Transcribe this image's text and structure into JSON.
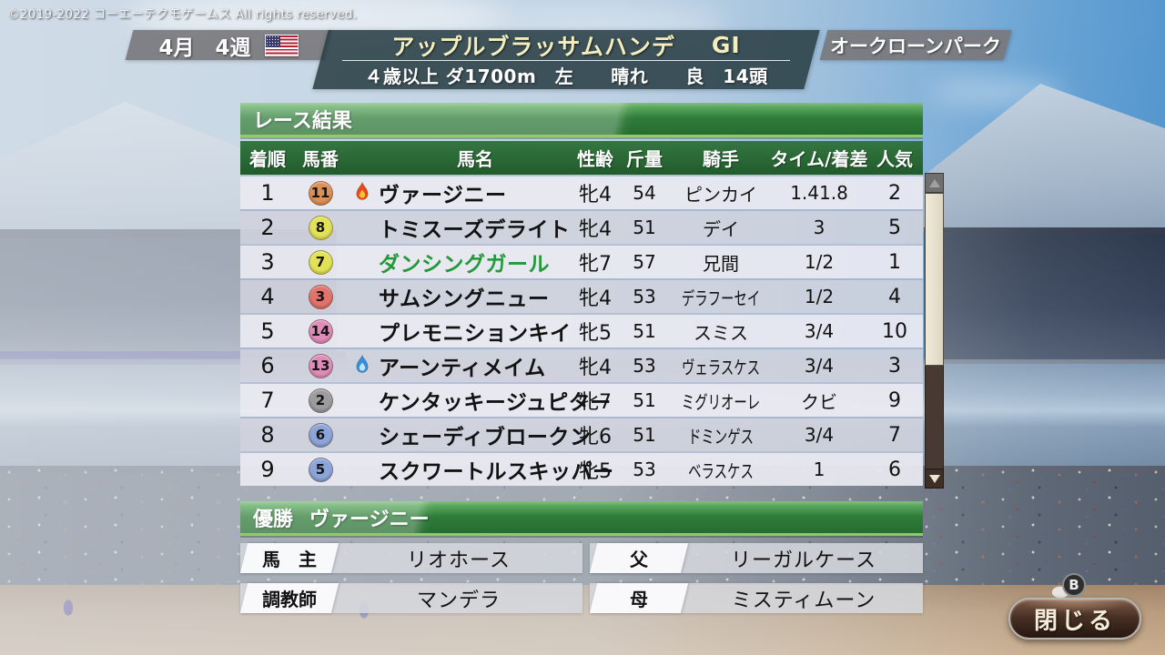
{
  "copyright": "©2019-2022 コーエーテクモゲームス All rights reserved.",
  "header": {
    "date": "4月　4週",
    "flag": "us-flag",
    "race_name": "アップルブラッサムハンデ",
    "grade": "GI",
    "conditions": "４歳以上 ダ1700m　左　　晴れ　　良　14頭",
    "venue": "オークローンパーク"
  },
  "results": {
    "section_title": "レース結果",
    "columns": {
      "rank": "着順",
      "number": "馬番",
      "name": "馬名",
      "sex_age": "性齢",
      "weight": "斤量",
      "jockey": "騎手",
      "time_margin": "タイム/着差",
      "popularity": "人気"
    },
    "rows": [
      {
        "rank": "1",
        "num": "11",
        "num_color": "#dd8f55",
        "condition": "hot",
        "name": "ヴァージニー",
        "name_color": "#121212",
        "sex_age": "牝4",
        "weight": "54",
        "jockey": "ピンカイ",
        "jockey_condensed": false,
        "time_margin": "1.41.8",
        "popularity": "2"
      },
      {
        "rank": "2",
        "num": "8",
        "num_color": "#e2e257",
        "condition": "",
        "name": "トミスーズデライト",
        "name_color": "#121212",
        "sex_age": "牝4",
        "weight": "51",
        "jockey": "デイ",
        "jockey_condensed": false,
        "time_margin": "3",
        "popularity": "5"
      },
      {
        "rank": "3",
        "num": "7",
        "num_color": "#e2e257",
        "condition": "",
        "name": "ダンシングガール",
        "name_color": "#23993a",
        "sex_age": "牝7",
        "weight": "57",
        "jockey": "兄間",
        "jockey_condensed": false,
        "time_margin": "1/2",
        "popularity": "1"
      },
      {
        "rank": "4",
        "num": "3",
        "num_color": "#e1726c",
        "condition": "",
        "name": "サムシングニュー",
        "name_color": "#121212",
        "sex_age": "牝4",
        "weight": "53",
        "jockey": "デラフーセイ",
        "jockey_condensed": true,
        "time_margin": "1/2",
        "popularity": "4"
      },
      {
        "rank": "5",
        "num": "14",
        "num_color": "#df8cba",
        "condition": "",
        "name": "プレモニションキイ",
        "name_color": "#121212",
        "sex_age": "牝5",
        "weight": "51",
        "jockey": "スミス",
        "jockey_condensed": false,
        "time_margin": "3/4",
        "popularity": "10"
      },
      {
        "rank": "6",
        "num": "13",
        "num_color": "#df8cba",
        "condition": "cool",
        "name": "アーンティメイム",
        "name_color": "#121212",
        "sex_age": "牝4",
        "weight": "53",
        "jockey": "ヴェラスケス",
        "jockey_condensed": true,
        "time_margin": "3/4",
        "popularity": "3"
      },
      {
        "rank": "7",
        "num": "2",
        "num_color": "#9c9c9e",
        "condition": "",
        "name": "ケンタッキージュピター",
        "name_color": "#121212",
        "sex_age": "牝7",
        "weight": "51",
        "jockey": "ミグリオーレ",
        "jockey_condensed": true,
        "time_margin": "クビ",
        "popularity": "9"
      },
      {
        "rank": "8",
        "num": "6",
        "num_color": "#8ba4d9",
        "condition": "",
        "name": "シェーディブロークン",
        "name_color": "#121212",
        "sex_age": "牝6",
        "weight": "51",
        "jockey": "ドミンゲス",
        "jockey_condensed": true,
        "time_margin": "3/4",
        "popularity": "7"
      },
      {
        "rank": "9",
        "num": "5",
        "num_color": "#8ba4d9",
        "condition": "",
        "name": "スクワートルスキッパー",
        "name_color": "#121212",
        "sex_age": "牝5",
        "weight": "53",
        "jockey": "ベラスケス",
        "jockey_condensed": true,
        "time_margin": "1",
        "popularity": "6"
      }
    ]
  },
  "winner": {
    "label": "優勝",
    "name": "ヴァージニー"
  },
  "details": [
    {
      "key": "owner",
      "label": "馬　主",
      "value": "リオホース"
    },
    {
      "key": "sire",
      "label": "父",
      "value": "リーガルケース"
    },
    {
      "key": "trainer",
      "label": "調教師",
      "value": "マンデラ"
    },
    {
      "key": "dam",
      "label": "母",
      "value": "ミスティムーン"
    }
  ],
  "close_button": {
    "label": "閉じる",
    "hint": "B"
  },
  "colors": {
    "accent_green_bar": "#2f7c3a",
    "table_header_green": "#2a6836",
    "owned_horse_green": "#23993a",
    "row_odd": "#e9eaf1",
    "row_even": "#d0d3dd",
    "close_button_brown": "#4a3125",
    "race_title_yellow": "#f3eebc"
  }
}
